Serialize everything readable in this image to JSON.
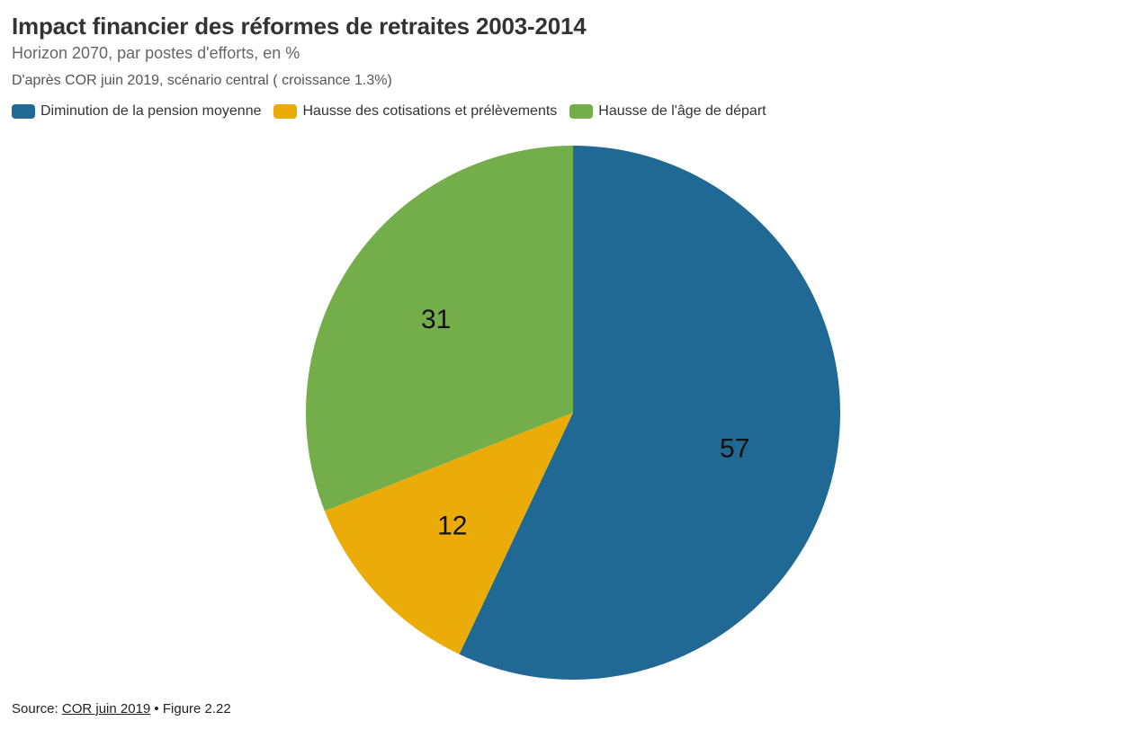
{
  "header": {
    "title": "Impact financier des réformes de retraites 2003-2014",
    "subtitle": "Horizon 2070, par postes d'efforts, en %",
    "note": "D'après COR juin 2019, scénario central ( croissance 1.3%)"
  },
  "footer": {
    "source_label": "Source: ",
    "source_link": "COR juin 2019",
    "figure_ref": " • Figure 2.22"
  },
  "chart_data": {
    "type": "pie",
    "title": "Impact financier des réformes de retraites 2003-2014",
    "subtitle": "Horizon 2070, par postes d'efforts, en %",
    "legend_position": "top-left",
    "series": [
      {
        "name": "Diminution de la pension moyenne",
        "value": 57,
        "label": "57",
        "color": "#1f6994"
      },
      {
        "name": "Hausse des cotisations et prélèvements",
        "value": 12,
        "label": "12",
        "color": "#ebab08"
      },
      {
        "name": "Hausse de l'âge de départ",
        "value": 31,
        "label": "31",
        "color": "#74ae4b"
      }
    ]
  }
}
